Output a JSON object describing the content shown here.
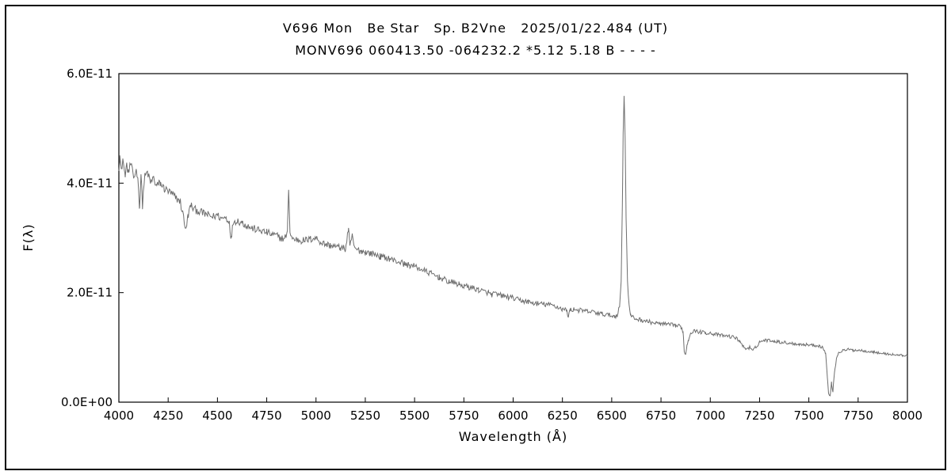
{
  "chart_data": {
    "type": "line",
    "title": "V696 Mon   Be Star   Sp. B2Vne   2025/01/22.484 (UT)",
    "subtitle": "MONV696 060413.50 -064232.2 *5.12 5.18 B - - - -",
    "xlabel": "Wavelength (Å)",
    "ylabel": "F(λ)",
    "xlim": [
      4000,
      8000
    ],
    "ylim": [
      0,
      6
    ],
    "y_unit_scale_label": "E-11",
    "x_ticks": [
      4000,
      4250,
      4500,
      4750,
      5000,
      5250,
      5500,
      5750,
      6000,
      6250,
      6500,
      6750,
      7000,
      7250,
      7500,
      7750,
      8000
    ],
    "y_ticks": [
      {
        "v": 0,
        "label": "0.0E+00"
      },
      {
        "v": 2,
        "label": "2.0E-11"
      },
      {
        "v": 4,
        "label": "4.0E-11"
      },
      {
        "v": 6,
        "label": "6.0E-11"
      }
    ],
    "line_color": "#6e6e6e",
    "frame_color": "#000000",
    "grid": false,
    "legend": false,
    "annotations": {
      "h_alpha_emission_peak": [
        6563,
        5.62
      ],
      "h_beta_emission_peak": [
        4861,
        3.92
      ],
      "telluric_B_band_dip": [
        6870,
        0.88
      ],
      "telluric_A_band_dip": [
        7605,
        0.12
      ]
    },
    "noise": {
      "amplitude_start": 0.08,
      "amplitude_end": 0.02,
      "step": 4,
      "seed": 12345
    },
    "series": [
      {
        "name": "spectrum",
        "control_points": [
          [
            4000,
            4.3
          ],
          [
            4005,
            4.5
          ],
          [
            4012,
            4.2
          ],
          [
            4020,
            4.45
          ],
          [
            4030,
            4.15
          ],
          [
            4040,
            4.3
          ],
          [
            4050,
            4.2
          ],
          [
            4060,
            4.35
          ],
          [
            4075,
            4.1
          ],
          [
            4090,
            4.25
          ],
          [
            4100,
            3.9
          ],
          [
            4105,
            3.55
          ],
          [
            4112,
            4.15
          ],
          [
            4120,
            3.6
          ],
          [
            4130,
            4.1
          ],
          [
            4145,
            4.2
          ],
          [
            4160,
            4.0
          ],
          [
            4175,
            4.1
          ],
          [
            4190,
            3.95
          ],
          [
            4210,
            4.0
          ],
          [
            4230,
            3.9
          ],
          [
            4250,
            3.85
          ],
          [
            4270,
            3.8
          ],
          [
            4290,
            3.72
          ],
          [
            4310,
            3.68
          ],
          [
            4330,
            3.35
          ],
          [
            4340,
            3.12
          ],
          [
            4350,
            3.4
          ],
          [
            4365,
            3.6
          ],
          [
            4380,
            3.52
          ],
          [
            4400,
            3.5
          ],
          [
            4425,
            3.45
          ],
          [
            4450,
            3.42
          ],
          [
            4475,
            3.38
          ],
          [
            4500,
            3.42
          ],
          [
            4520,
            3.35
          ],
          [
            4540,
            3.38
          ],
          [
            4560,
            3.3
          ],
          [
            4570,
            2.98
          ],
          [
            4580,
            3.3
          ],
          [
            4600,
            3.32
          ],
          [
            4625,
            3.28
          ],
          [
            4650,
            3.22
          ],
          [
            4675,
            3.18
          ],
          [
            4700,
            3.15
          ],
          [
            4725,
            3.12
          ],
          [
            4750,
            3.1
          ],
          [
            4775,
            3.06
          ],
          [
            4800,
            3.04
          ],
          [
            4820,
            3.0
          ],
          [
            4840,
            2.98
          ],
          [
            4855,
            3.1
          ],
          [
            4861,
            3.92
          ],
          [
            4868,
            3.1
          ],
          [
            4880,
            2.98
          ],
          [
            4900,
            2.97
          ],
          [
            4925,
            2.95
          ],
          [
            4950,
            2.96
          ],
          [
            4975,
            2.98
          ],
          [
            5000,
            3.0
          ],
          [
            5025,
            2.92
          ],
          [
            5050,
            2.88
          ],
          [
            5075,
            2.86
          ],
          [
            5100,
            2.84
          ],
          [
            5125,
            2.82
          ],
          [
            5150,
            2.8
          ],
          [
            5165,
            3.18
          ],
          [
            5172,
            2.82
          ],
          [
            5185,
            3.05
          ],
          [
            5195,
            2.8
          ],
          [
            5210,
            2.78
          ],
          [
            5230,
            2.76
          ],
          [
            5250,
            2.74
          ],
          [
            5275,
            2.72
          ],
          [
            5300,
            2.7
          ],
          [
            5325,
            2.66
          ],
          [
            5350,
            2.64
          ],
          [
            5375,
            2.62
          ],
          [
            5400,
            2.58
          ],
          [
            5425,
            2.56
          ],
          [
            5450,
            2.52
          ],
          [
            5475,
            2.5
          ],
          [
            5500,
            2.48
          ],
          [
            5525,
            2.44
          ],
          [
            5550,
            2.4
          ],
          [
            5575,
            2.36
          ],
          [
            5600,
            2.32
          ],
          [
            5625,
            2.28
          ],
          [
            5650,
            2.24
          ],
          [
            5675,
            2.2
          ],
          [
            5700,
            2.18
          ],
          [
            5725,
            2.15
          ],
          [
            5750,
            2.12
          ],
          [
            5775,
            2.1
          ],
          [
            5800,
            2.08
          ],
          [
            5825,
            2.05
          ],
          [
            5850,
            2.02
          ],
          [
            5875,
            2.0
          ],
          [
            5890,
            1.96
          ],
          [
            5900,
            1.98
          ],
          [
            5925,
            1.96
          ],
          [
            5950,
            1.94
          ],
          [
            5975,
            1.92
          ],
          [
            6000,
            1.9
          ],
          [
            6025,
            1.87
          ],
          [
            6050,
            1.85
          ],
          [
            6075,
            1.83
          ],
          [
            6100,
            1.81
          ],
          [
            6125,
            1.8
          ],
          [
            6150,
            1.79
          ],
          [
            6175,
            1.78
          ],
          [
            6200,
            1.77
          ],
          [
            6225,
            1.74
          ],
          [
            6250,
            1.7
          ],
          [
            6270,
            1.68
          ],
          [
            6280,
            1.58
          ],
          [
            6290,
            1.68
          ],
          [
            6310,
            1.7
          ],
          [
            6330,
            1.68
          ],
          [
            6350,
            1.67
          ],
          [
            6375,
            1.66
          ],
          [
            6400,
            1.65
          ],
          [
            6425,
            1.63
          ],
          [
            6450,
            1.61
          ],
          [
            6475,
            1.6
          ],
          [
            6500,
            1.58
          ],
          [
            6515,
            1.57
          ],
          [
            6530,
            1.6
          ],
          [
            6540,
            1.75
          ],
          [
            6548,
            2.2
          ],
          [
            6554,
            3.6
          ],
          [
            6558,
            4.9
          ],
          [
            6563,
            5.62
          ],
          [
            6568,
            4.8
          ],
          [
            6573,
            3.4
          ],
          [
            6580,
            2.2
          ],
          [
            6588,
            1.75
          ],
          [
            6595,
            1.6
          ],
          [
            6605,
            1.55
          ],
          [
            6625,
            1.52
          ],
          [
            6650,
            1.5
          ],
          [
            6675,
            1.48
          ],
          [
            6700,
            1.46
          ],
          [
            6725,
            1.44
          ],
          [
            6750,
            1.43
          ],
          [
            6775,
            1.42
          ],
          [
            6800,
            1.41
          ],
          [
            6825,
            1.4
          ],
          [
            6850,
            1.38
          ],
          [
            6862,
            1.3
          ],
          [
            6868,
            0.92
          ],
          [
            6875,
            0.88
          ],
          [
            6882,
            1.05
          ],
          [
            6890,
            1.15
          ],
          [
            6900,
            1.28
          ],
          [
            6925,
            1.3
          ],
          [
            6950,
            1.28
          ],
          [
            6975,
            1.27
          ],
          [
            7000,
            1.26
          ],
          [
            7025,
            1.24
          ],
          [
            7050,
            1.22
          ],
          [
            7075,
            1.21
          ],
          [
            7100,
            1.2
          ],
          [
            7125,
            1.18
          ],
          [
            7150,
            1.12
          ],
          [
            7165,
            1.02
          ],
          [
            7180,
            0.98
          ],
          [
            7200,
            1.0
          ],
          [
            7215,
            0.93
          ],
          [
            7230,
            1.0
          ],
          [
            7250,
            1.1
          ],
          [
            7275,
            1.13
          ],
          [
            7300,
            1.13
          ],
          [
            7325,
            1.12
          ],
          [
            7350,
            1.1
          ],
          [
            7375,
            1.09
          ],
          [
            7400,
            1.08
          ],
          [
            7425,
            1.07
          ],
          [
            7450,
            1.06
          ],
          [
            7475,
            1.05
          ],
          [
            7500,
            1.05
          ],
          [
            7525,
            1.04
          ],
          [
            7550,
            1.03
          ],
          [
            7570,
            1.0
          ],
          [
            7585,
            0.9
          ],
          [
            7594,
            0.45
          ],
          [
            7600,
            0.15
          ],
          [
            7608,
            0.12
          ],
          [
            7615,
            0.35
          ],
          [
            7622,
            0.2
          ],
          [
            7630,
            0.55
          ],
          [
            7640,
            0.8
          ],
          [
            7650,
            0.9
          ],
          [
            7665,
            0.93
          ],
          [
            7680,
            0.95
          ],
          [
            7700,
            0.96
          ],
          [
            7725,
            0.95
          ],
          [
            7750,
            0.95
          ],
          [
            7775,
            0.94
          ],
          [
            7800,
            0.93
          ],
          [
            7825,
            0.92
          ],
          [
            7850,
            0.9
          ],
          [
            7875,
            0.89
          ],
          [
            7900,
            0.88
          ],
          [
            7925,
            0.87
          ],
          [
            7950,
            0.86
          ],
          [
            7975,
            0.855
          ],
          [
            8000,
            0.85
          ]
        ]
      }
    ]
  }
}
